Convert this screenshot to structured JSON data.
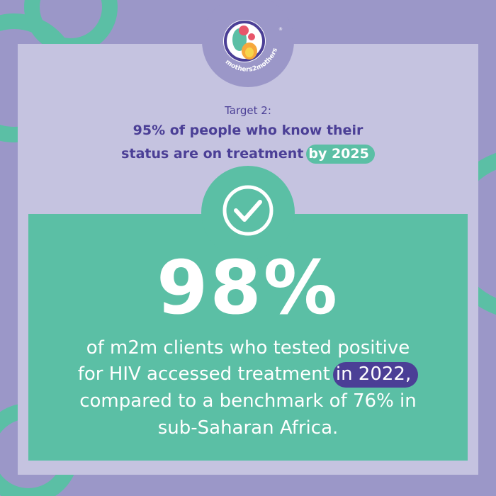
{
  "logo": {
    "text": "mothers2mothers",
    "mark": "®"
  },
  "target": {
    "label": "Target 2:",
    "lines": [
      "95% of people who know their",
      "status are on treatment"
    ],
    "highlight": "by 2025"
  },
  "stat": {
    "value": "98%",
    "lines": [
      "of m2m clients who tested positive",
      "for HIV accessed treatment",
      "compared to a benchmark of 76% in",
      "sub-Saharan Africa."
    ],
    "highlight": "in 2022,"
  }
}
